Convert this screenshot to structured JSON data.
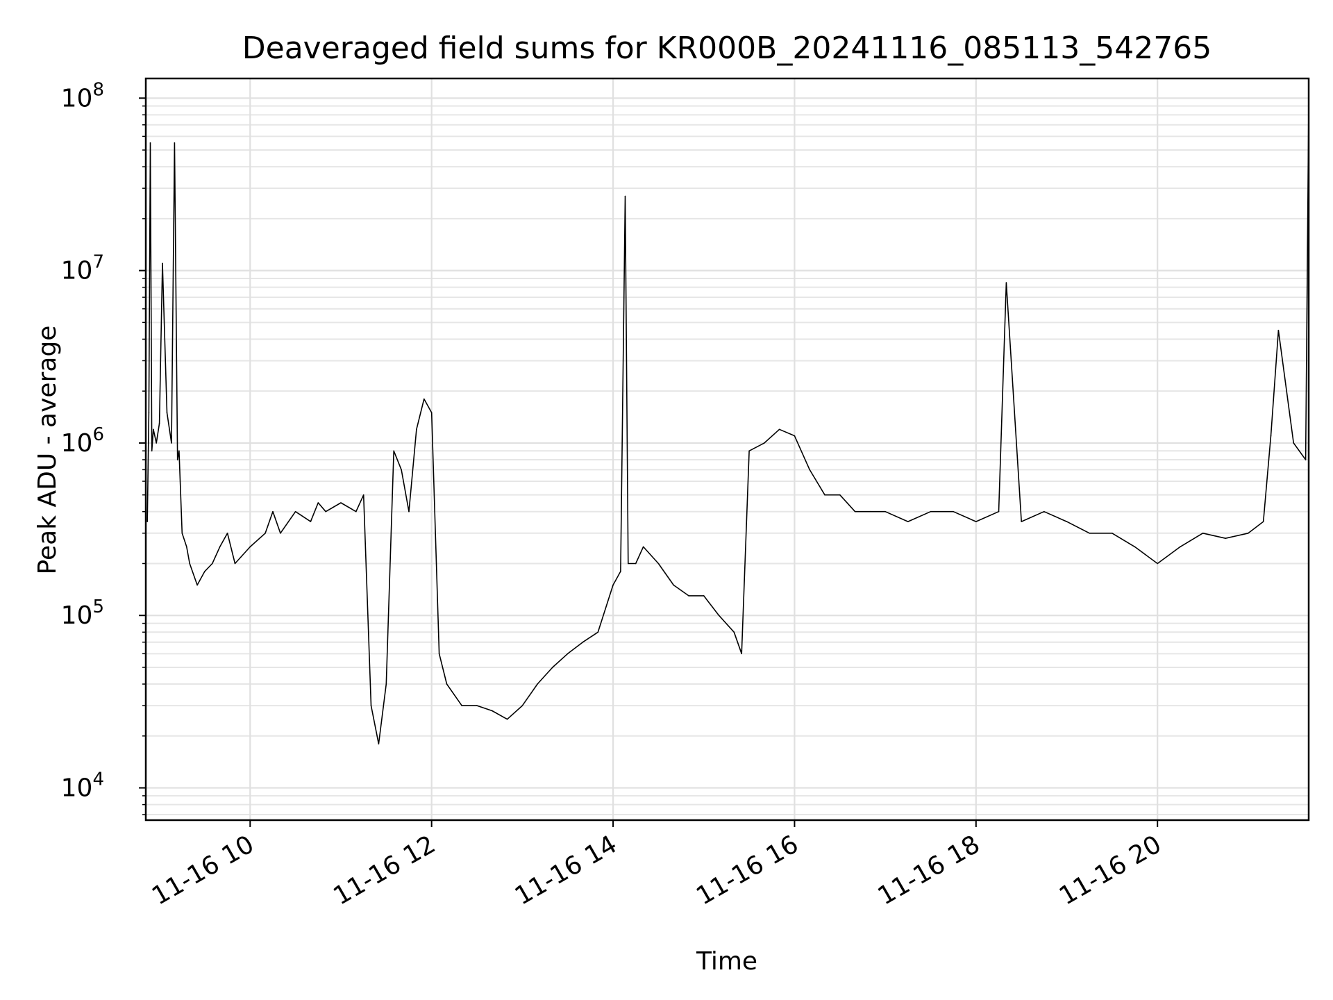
{
  "chart_data": {
    "type": "line",
    "title": "Deaveraged field sums for KR000B_20241116_085113_542765",
    "xlabel": "Time",
    "ylabel": "Peak ADU - average",
    "yscale": "log",
    "xlim": [
      "2024-11-16 08:51",
      "2024-11-16 21:40"
    ],
    "ylim": [
      6500,
      130000000
    ],
    "grid": true,
    "x_ticks": [
      {
        "value": "2024-11-16 10:00",
        "label": "11-16 10"
      },
      {
        "value": "2024-11-16 12:00",
        "label": "11-16 12"
      },
      {
        "value": "2024-11-16 14:00",
        "label": "11-16 14"
      },
      {
        "value": "2024-11-16 16:00",
        "label": "11-16 16"
      },
      {
        "value": "2024-11-16 18:00",
        "label": "11-16 18"
      },
      {
        "value": "2024-11-16 20:00",
        "label": "11-16 20"
      }
    ],
    "y_ticks": [
      {
        "value": 10000,
        "base": "10",
        "exp": "4"
      },
      {
        "value": 100000,
        "base": "10",
        "exp": "5"
      },
      {
        "value": 1000000,
        "base": "10",
        "exp": "6"
      },
      {
        "value": 10000000,
        "base": "10",
        "exp": "7"
      },
      {
        "value": 100000000,
        "base": "10",
        "exp": "8"
      }
    ],
    "series": [
      {
        "color": "#000000",
        "x": [
          "2024-11-16 08:52",
          "2024-11-16 08:53",
          "2024-11-16 08:54",
          "2024-11-16 08:55",
          "2024-11-16 08:56",
          "2024-11-16 08:58",
          "2024-11-16 09:00",
          "2024-11-16 09:02",
          "2024-11-16 09:05",
          "2024-11-16 09:08",
          "2024-11-16 09:10",
          "2024-11-16 09:12",
          "2024-11-16 09:13",
          "2024-11-16 09:15",
          "2024-11-16 09:18",
          "2024-11-16 09:20",
          "2024-11-16 09:25",
          "2024-11-16 09:30",
          "2024-11-16 09:35",
          "2024-11-16 09:40",
          "2024-11-16 09:45",
          "2024-11-16 09:50",
          "2024-11-16 10:00",
          "2024-11-16 10:10",
          "2024-11-16 10:15",
          "2024-11-16 10:20",
          "2024-11-16 10:30",
          "2024-11-16 10:40",
          "2024-11-16 10:45",
          "2024-11-16 10:50",
          "2024-11-16 11:00",
          "2024-11-16 11:10",
          "2024-11-16 11:15",
          "2024-11-16 11:20",
          "2024-11-16 11:25",
          "2024-11-16 11:30",
          "2024-11-16 11:35",
          "2024-11-16 11:40",
          "2024-11-16 11:45",
          "2024-11-16 11:50",
          "2024-11-16 11:55",
          "2024-11-16 12:00",
          "2024-11-16 12:05",
          "2024-11-16 12:10",
          "2024-11-16 12:20",
          "2024-11-16 12:30",
          "2024-11-16 12:40",
          "2024-11-16 12:50",
          "2024-11-16 13:00",
          "2024-11-16 13:10",
          "2024-11-16 13:20",
          "2024-11-16 13:30",
          "2024-11-16 13:40",
          "2024-11-16 13:50",
          "2024-11-16 14:00",
          "2024-11-16 14:05",
          "2024-11-16 14:08",
          "2024-11-16 14:10",
          "2024-11-16 14:15",
          "2024-11-16 14:20",
          "2024-11-16 14:30",
          "2024-11-16 14:40",
          "2024-11-16 14:50",
          "2024-11-16 15:00",
          "2024-11-16 15:10",
          "2024-11-16 15:20",
          "2024-11-16 15:25",
          "2024-11-16 15:30",
          "2024-11-16 15:40",
          "2024-11-16 15:50",
          "2024-11-16 16:00",
          "2024-11-16 16:10",
          "2024-11-16 16:20",
          "2024-11-16 16:30",
          "2024-11-16 16:40",
          "2024-11-16 16:50",
          "2024-11-16 17:00",
          "2024-11-16 17:15",
          "2024-11-16 17:30",
          "2024-11-16 17:45",
          "2024-11-16 18:00",
          "2024-11-16 18:15",
          "2024-11-16 18:20",
          "2024-11-16 18:30",
          "2024-11-16 18:45",
          "2024-11-16 19:00",
          "2024-11-16 19:15",
          "2024-11-16 19:30",
          "2024-11-16 19:45",
          "2024-11-16 20:00",
          "2024-11-16 20:15",
          "2024-11-16 20:30",
          "2024-11-16 20:45",
          "2024-11-16 21:00",
          "2024-11-16 21:10",
          "2024-11-16 21:15",
          "2024-11-16 21:20",
          "2024-11-16 21:30",
          "2024-11-16 21:38",
          "2024-11-16 21:40"
        ],
        "y": [
          350000,
          1500000,
          55000000,
          900000,
          1200000,
          1000000,
          1300000,
          11000000,
          1500000,
          1000000,
          55000000,
          800000,
          900000,
          300000,
          250000,
          200000,
          150000,
          180000,
          200000,
          250000,
          300000,
          200000,
          250000,
          300000,
          400000,
          300000,
          400000,
          350000,
          450000,
          400000,
          450000,
          400000,
          500000,
          30000,
          18000,
          40000,
          900000,
          700000,
          400000,
          1200000,
          1800000,
          1500000,
          60000,
          40000,
          30000,
          30000,
          28000,
          25000,
          30000,
          40000,
          50000,
          60000,
          70000,
          80000,
          150000,
          180000,
          27000000,
          200000,
          200000,
          250000,
          200000,
          150000,
          130000,
          130000,
          100000,
          80000,
          60000,
          900000,
          1000000,
          1200000,
          1100000,
          700000,
          500000,
          500000,
          400000,
          400000,
          400000,
          350000,
          400000,
          400000,
          350000,
          400000,
          8500000,
          350000,
          400000,
          350000,
          300000,
          300000,
          250000,
          200000,
          250000,
          300000,
          280000,
          300000,
          350000,
          1100000,
          4500000,
          1000000,
          800000,
          90000000
        ]
      }
    ]
  }
}
